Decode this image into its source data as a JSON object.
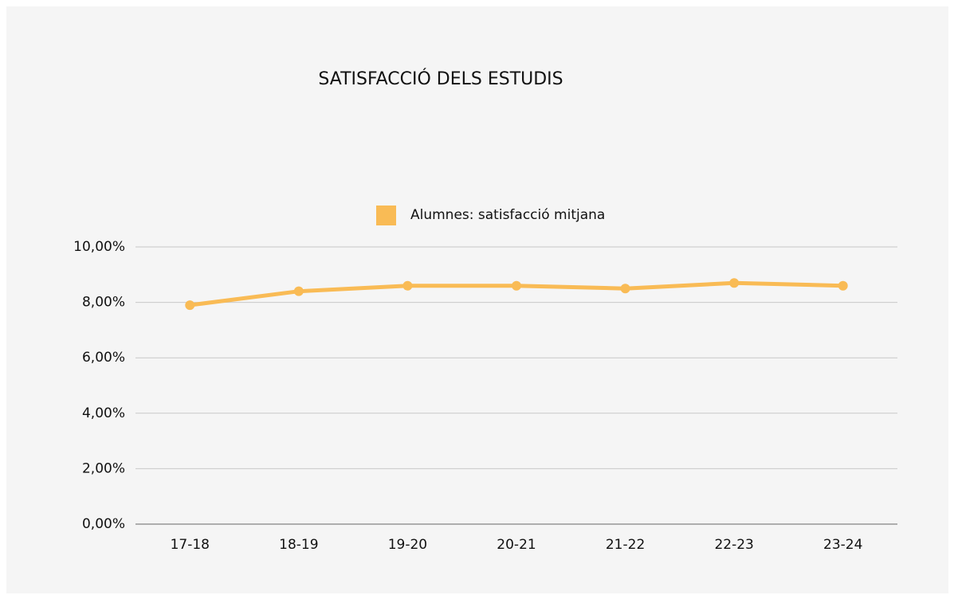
{
  "chart_data": {
    "type": "line",
    "title": "SATISFACCIÓ DELS ESTUDIS",
    "categories": [
      "17-18",
      "18-19",
      "19-20",
      "20-21",
      "21-22",
      "22-23",
      "23-24"
    ],
    "series": [
      {
        "name": "Alumnes: satisfacció mitjana",
        "color": "#f9bb55",
        "values": [
          7.9,
          8.4,
          8.6,
          8.6,
          8.5,
          8.7,
          8.6
        ]
      }
    ],
    "ylim": [
      0,
      10
    ],
    "yticks": [
      {
        "value": 0,
        "label": "0,00%"
      },
      {
        "value": 2,
        "label": "2,00%"
      },
      {
        "value": 4,
        "label": "4,00%"
      },
      {
        "value": 6,
        "label": "6,00%"
      },
      {
        "value": 8,
        "label": "8,00%"
      },
      {
        "value": 10,
        "label": "10,00%"
      }
    ],
    "grid": true,
    "legend": "top"
  }
}
